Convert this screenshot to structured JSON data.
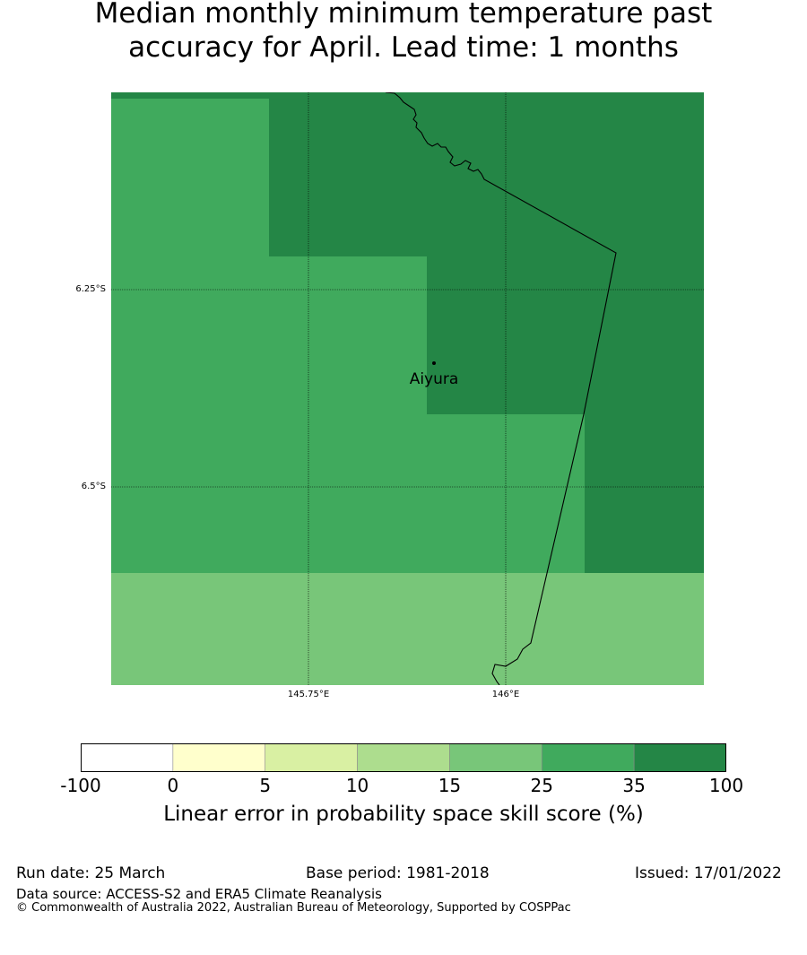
{
  "title_line1": "Median monthly minimum temperature past",
  "title_line2": "accuracy for April. Lead time: 1 months",
  "map": {
    "place_name": "Aiyura",
    "lat_labels": [
      "6.25°S",
      "6.5°S"
    ],
    "lon_labels": [
      "145.75°E",
      "146°E"
    ],
    "colors": {
      "band_35_100": "#248646",
      "band_25_35": "#40aa5d",
      "band_15_25": "#78c679"
    }
  },
  "colorbar": {
    "ticks": [
      "-100",
      "0",
      "5",
      "10",
      "15",
      "25",
      "35",
      "100"
    ],
    "colors": [
      "#ffffff",
      "#ffffcc",
      "#d9f0a3",
      "#addd8e",
      "#78c679",
      "#40aa5d",
      "#248646"
    ],
    "label": "Linear error in probability space skill score (%)"
  },
  "footer": {
    "run_date": "Run date: 25 March",
    "base_period": "Base period: 1981-2018",
    "issued": "Issued: 17/01/2022",
    "data_source": "Data source: ACCESS-S2 and ERA5 Climate Reanalysis",
    "copyright": "© Commonwealth of Australia 2022, Australian Bureau of Meteorology, Supported by COSPPac"
  }
}
